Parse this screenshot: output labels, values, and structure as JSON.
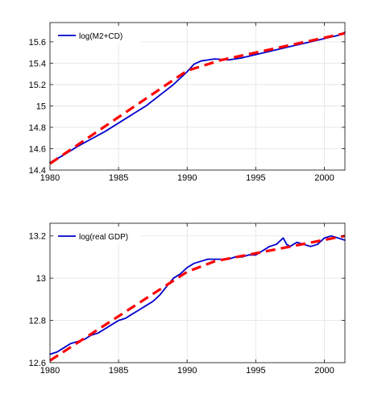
{
  "chart_data": [
    {
      "type": "line",
      "title": "",
      "xlabel": "",
      "ylabel": "",
      "xlim": [
        1980,
        2001.5
      ],
      "ylim": [
        14.4,
        15.78
      ],
      "xticks": [
        1980,
        1985,
        1990,
        1995,
        2000
      ],
      "xtick_labels": [
        "1980",
        "1985",
        "1990",
        "1995",
        "2000"
      ],
      "yticks": [
        14.4,
        14.6,
        14.8,
        15,
        15.2,
        15.4,
        15.6
      ],
      "ytick_labels": [
        "14.4",
        "14.6",
        "14.8",
        "15",
        "15.2",
        "15.4",
        "15.6"
      ],
      "grid": true,
      "legend_position": "top-left",
      "series": [
        {
          "name": "log(M2+CD)",
          "style": "solid",
          "color": "#0000cc",
          "x": [
            1980,
            1981,
            1982,
            1983,
            1984,
            1985,
            1986,
            1987,
            1988,
            1989,
            1990,
            1990.5,
            1991,
            1992,
            1993,
            1994,
            1995,
            1996,
            1997,
            1998,
            1999,
            2000,
            2001,
            2001.5
          ],
          "y": [
            14.47,
            14.54,
            14.62,
            14.69,
            14.76,
            14.84,
            14.92,
            15.0,
            15.1,
            15.2,
            15.32,
            15.39,
            15.42,
            15.44,
            15.43,
            15.45,
            15.48,
            15.51,
            15.54,
            15.57,
            15.6,
            15.63,
            15.66,
            15.69
          ]
        },
        {
          "name": "",
          "style": "dashed",
          "color": "#ff0000",
          "x": [
            1980,
            1990,
            1992.5,
            2001.5
          ],
          "y": [
            14.46,
            15.33,
            15.43,
            15.68
          ]
        }
      ]
    },
    {
      "type": "line",
      "title": "",
      "xlabel": "",
      "ylabel": "",
      "xlim": [
        1980,
        2001.5
      ],
      "ylim": [
        12.6,
        13.26
      ],
      "xticks": [
        1980,
        1985,
        1990,
        1995,
        2000
      ],
      "xtick_labels": [
        "1980",
        "1985",
        "1990",
        "1995",
        "2000"
      ],
      "yticks": [
        12.6,
        12.8,
        13,
        13.2
      ],
      "ytick_labels": [
        "12.6",
        "12.8",
        "13",
        "13.2"
      ],
      "grid": true,
      "legend_position": "top-left",
      "series": [
        {
          "name": "log(real GDP)",
          "style": "solid",
          "color": "#0000cc",
          "x": [
            1980,
            1980.5,
            1981,
            1981.5,
            1982,
            1982.5,
            1983,
            1983.5,
            1984,
            1984.5,
            1985,
            1985.5,
            1986,
            1986.5,
            1987,
            1987.5,
            1988,
            1988.5,
            1989,
            1989.5,
            1990,
            1990.5,
            1991,
            1991.5,
            1992,
            1992.5,
            1993,
            1993.5,
            1994,
            1994.5,
            1995,
            1995.5,
            1996,
            1996.5,
            1997,
            1997.25,
            1997.5,
            1998,
            1998.5,
            1999,
            1999.5,
            2000,
            2000.5,
            2001,
            2001.5
          ],
          "y": [
            12.64,
            12.65,
            12.67,
            12.69,
            12.7,
            12.71,
            12.73,
            12.74,
            12.76,
            12.78,
            12.8,
            12.81,
            12.83,
            12.85,
            12.87,
            12.89,
            12.92,
            12.96,
            13.0,
            13.02,
            13.05,
            13.07,
            13.08,
            13.09,
            13.09,
            13.09,
            13.09,
            13.1,
            13.1,
            13.11,
            13.11,
            13.13,
            13.15,
            13.16,
            13.19,
            13.16,
            13.15,
            13.17,
            13.16,
            13.15,
            13.16,
            13.19,
            13.2,
            13.19,
            13.18
          ]
        },
        {
          "name": "",
          "style": "dashed",
          "color": "#ff0000",
          "x": [
            1980,
            1990,
            1992,
            2001.5
          ],
          "y": [
            12.61,
            13.03,
            13.08,
            13.2
          ]
        }
      ]
    }
  ]
}
